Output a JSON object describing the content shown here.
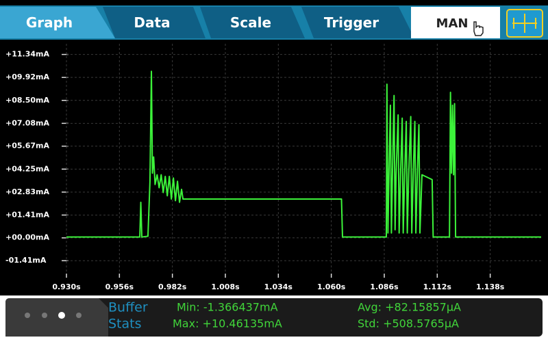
{
  "tabs": [
    "Graph",
    "Data",
    "Scale",
    "Trigger"
  ],
  "mode": "MAN",
  "chart_data": {
    "type": "line",
    "color": "#3cf23a",
    "grid": true,
    "xlim": [
      0.93,
      1.163
    ],
    "ylim": [
      -2.21,
      12.0
    ],
    "xticks": [
      {
        "value": 0.93,
        "label": "0.930s"
      },
      {
        "value": 0.956,
        "label": "0.956s"
      },
      {
        "value": 0.982,
        "label": "0.982s"
      },
      {
        "value": 1.008,
        "label": "1.008s"
      },
      {
        "value": 1.034,
        "label": "1.034s"
      },
      {
        "value": 1.06,
        "label": "1.060s"
      },
      {
        "value": 1.086,
        "label": "1.086s"
      },
      {
        "value": 1.112,
        "label": "1.112s"
      },
      {
        "value": 1.138,
        "label": "1.138s"
      }
    ],
    "yticks": [
      {
        "value": 11.34,
        "label": "+11.34mA"
      },
      {
        "value": 9.92,
        "label": "+09.92mA"
      },
      {
        "value": 8.5,
        "label": "+08.50mA"
      },
      {
        "value": 7.08,
        "label": "+07.08mA"
      },
      {
        "value": 5.67,
        "label": "+05.67mA"
      },
      {
        "value": 4.25,
        "label": "+04.25mA"
      },
      {
        "value": 2.83,
        "label": "+02.83mA"
      },
      {
        "value": 1.41,
        "label": "+01.41mA"
      },
      {
        "value": 0,
        "label": "+00.00mA"
      },
      {
        "value": -1.41,
        "label": "-01.41mA"
      }
    ],
    "x": [
      0.93,
      0.966,
      0.9665,
      0.967,
      0.97,
      0.971,
      0.9717,
      0.9722,
      0.9728,
      0.9735,
      0.9745,
      0.9755,
      0.9765,
      0.9775,
      0.9785,
      0.9795,
      0.9805,
      0.9815,
      0.9825,
      0.9835,
      0.9845,
      0.9855,
      0.9865,
      0.9872,
      1.065,
      1.0655,
      1.087,
      1.0873,
      1.0878,
      1.0883,
      1.089,
      1.0895,
      1.09,
      1.0908,
      1.0913,
      1.0918,
      1.0928,
      1.0933,
      1.094,
      1.0948,
      1.0953,
      1.096,
      1.0968,
      1.0973,
      1.098,
      1.099,
      1.0995,
      1.1002,
      1.101,
      1.1015,
      1.1022,
      1.103,
      1.1035,
      1.1045,
      1.1095,
      1.11,
      1.118,
      1.1185,
      1.119,
      1.1195,
      1.12,
      1.1205,
      1.121,
      1.163
    ],
    "values": [
      0.05,
      0.05,
      2.2,
      0.05,
      0.1,
      3.5,
      10.3,
      4.0,
      5.0,
      3.3,
      3.9,
      3.1,
      3.9,
      2.8,
      3.8,
      2.6,
      3.8,
      2.4,
      3.7,
      2.3,
      3.5,
      2.2,
      3.0,
      2.4,
      2.4,
      0.05,
      0.05,
      9.5,
      0.3,
      3.9,
      8.2,
      0.3,
      3.9,
      8.8,
      0.5,
      3.9,
      7.6,
      0.3,
      3.9,
      7.4,
      0.3,
      3.9,
      7.2,
      0.3,
      3.9,
      7.5,
      0.3,
      3.9,
      7.2,
      0.3,
      3.9,
      7.0,
      0.3,
      3.9,
      3.6,
      0.05,
      0.05,
      9.0,
      4.0,
      8.2,
      3.9,
      8.3,
      0.05,
      0.05
    ]
  },
  "buffer_stats": {
    "label": [
      "Buffer",
      "Stats"
    ],
    "min": "Min: -1.366437mA",
    "max": "Max: +10.46135mA",
    "avg": "Avg: +82.15857µA",
    "std": "Std: +508.5765µA"
  }
}
